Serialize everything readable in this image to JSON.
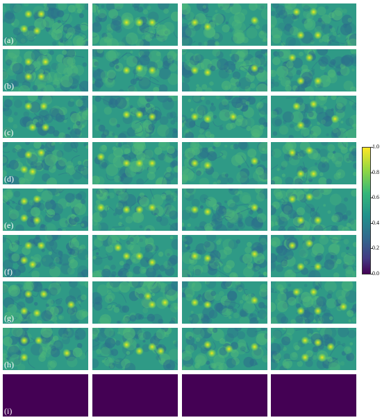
{
  "row_labels": [
    "(a)",
    "(b)",
    "(c)",
    "(d)",
    "(e)",
    "(f)",
    "(g)",
    "(h)",
    "(i)"
  ],
  "colorbar": {
    "ticks": [
      "1.0",
      "0.8",
      "0.6",
      "0.4",
      "0.2",
      "0.0"
    ],
    "colormap": "viridis",
    "range": [
      0,
      1
    ]
  },
  "colors": {
    "field_base": "#2f9a86",
    "field_dark": "#2c6e8c",
    "field_light": "#4fb87a",
    "spot_core": "#f6e620",
    "spot_halo": "#8fd744",
    "empty_panel": "#440154"
  }
}
